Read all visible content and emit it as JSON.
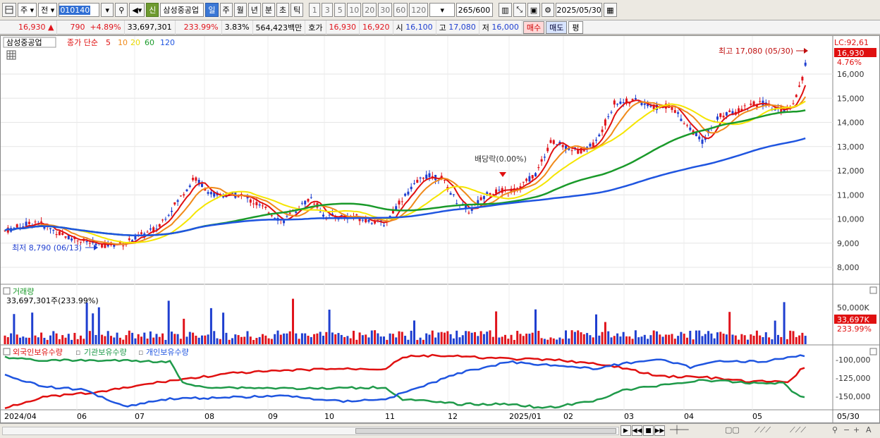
{
  "toolbar": {
    "market": "주",
    "period_type": "전",
    "code": "010140",
    "sin_label": "신",
    "stock_name": "삼성중공업",
    "periods": [
      "일",
      "주",
      "월",
      "년",
      "분",
      "초",
      "틱"
    ],
    "period_selected": "일",
    "intervals": [
      "1",
      "3",
      "5",
      "10",
      "20",
      "30",
      "60",
      "120"
    ],
    "count": "265",
    "count_total": "/600",
    "date": "2025/05/30"
  },
  "quote": {
    "price": "16,930",
    "change_arrow": "▲",
    "change": "790",
    "change_pct": "+4.89%",
    "volume": "33,697,301",
    "volume_ratio": "233.99%",
    "turnover": "3.83%",
    "amount": "564,423백만",
    "bid_label": "호가",
    "ask": "16,930",
    "bid": "16,920",
    "open_label": "시",
    "open": "16,100",
    "high_label": "고",
    "high": "17,080",
    "low_label": "저",
    "low": "16,000",
    "buy_label": "매수",
    "sell_label": "매도",
    "pyeong_label": "평"
  },
  "price_panel": {
    "stock_tag": "삼성중공업",
    "ma_label": "종가 단순",
    "ma_periods": [
      "5",
      "10",
      "20",
      "60",
      "120"
    ],
    "ma_colors": [
      "#e01010",
      "#f08a1a",
      "#f5e500",
      "#1a9a2a",
      "#1f55e0"
    ],
    "lc_label": "LC:92,61",
    "last_price": "16,930",
    "last_pct": "4.76%",
    "high_annotation": "최고 17,080 (05/30)",
    "low_annotation": "최저 8,790 (06/13)",
    "dividend_annotation": "배당락(0.00%)",
    "y_ticks": [
      "16,000",
      "15,000",
      "14,000",
      "13,000",
      "12,000",
      "11,000",
      "10,000",
      "9,000",
      "8,000"
    ]
  },
  "volume_panel": {
    "title": "거래량",
    "value": "33,697,301주(233.99%)",
    "y_tick": "50,000K",
    "last_label": "33,697K",
    "last_pct": "233.99%"
  },
  "holding_panel": {
    "legend": [
      "외국인보유수량",
      "기관보유수량",
      "개인보유수량"
    ],
    "legend_colors": [
      "#e01010",
      "#1f9a4a",
      "#1f55e0"
    ],
    "y_ticks": [
      "-100,000",
      "-125,000",
      "-150,000"
    ]
  },
  "x_axis": {
    "labels": [
      "2024/04",
      "06",
      "07",
      "08",
      "09",
      "10",
      "11",
      "12",
      "2025/01",
      "02",
      "03",
      "04",
      "05"
    ],
    "end_label": "05/30"
  },
  "colors": {
    "up": "#e0141c",
    "down": "#1f3fd0"
  }
}
